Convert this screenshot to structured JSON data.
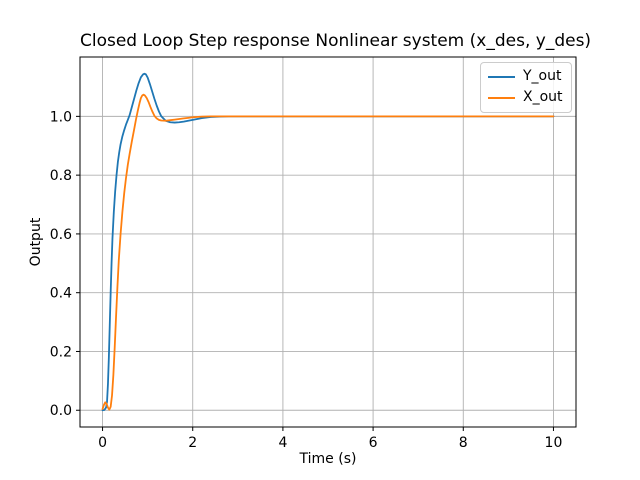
{
  "chart_data": {
    "type": "line",
    "title": "Closed Loop Step response Nonlinear system (x_des, y_des)",
    "xlabel": "Time (s)",
    "ylabel": "Output",
    "xlim": [
      -0.5,
      10.5
    ],
    "ylim": [
      -0.057,
      1.202
    ],
    "grid": true,
    "grid_color": "#b0b0b0",
    "axes_edge_color": "#000000",
    "background_color": "#ffffff",
    "legend": {
      "position": "upper right",
      "entries": [
        "Y_out",
        "X_out"
      ]
    },
    "xticks": {
      "values": [
        0,
        2,
        4,
        6,
        8,
        10
      ],
      "labels": [
        "0",
        "2",
        "4",
        "6",
        "8",
        "10"
      ]
    },
    "yticks": {
      "values": [
        0.0,
        0.2,
        0.4,
        0.6,
        0.8,
        1.0
      ],
      "labels": [
        "0.0",
        "0.2",
        "0.4",
        "0.6",
        "0.8",
        "1.0"
      ]
    },
    "series": [
      {
        "name": "Y_out",
        "color": "#1f77b4",
        "x": [
          0,
          0.04,
          0.08,
          0.1,
          0.12,
          0.14,
          0.16,
          0.18,
          0.2,
          0.22,
          0.25,
          0.28,
          0.31,
          0.34,
          0.37,
          0.4,
          0.44,
          0.48,
          0.52,
          0.56,
          0.6,
          0.65,
          0.7,
          0.75,
          0.8,
          0.85,
          0.9,
          0.93,
          0.96,
          1.0,
          1.05,
          1.1,
          1.15,
          1.2,
          1.25,
          1.3,
          1.4,
          1.5,
          1.6,
          1.7,
          1.8,
          1.9,
          2.0,
          2.1,
          2.2,
          2.4,
          2.6,
          2.8,
          3.0,
          3.5,
          4.0,
          4.5,
          5.0,
          5.5,
          6.0,
          6.5,
          7.0,
          7.5,
          8.0,
          8.5,
          9.0,
          9.5,
          10.0
        ],
        "y": [
          0,
          0.001,
          0.01,
          0.03,
          0.09,
          0.18,
          0.29,
          0.4,
          0.5,
          0.585,
          0.675,
          0.745,
          0.8,
          0.845,
          0.878,
          0.905,
          0.932,
          0.953,
          0.972,
          0.988,
          1.004,
          1.032,
          1.06,
          1.088,
          1.113,
          1.133,
          1.143,
          1.145,
          1.143,
          1.132,
          1.11,
          1.085,
          1.06,
          1.037,
          1.017,
          1.001,
          0.985,
          0.98,
          0.979,
          0.98,
          0.982,
          0.985,
          0.988,
          0.991,
          0.994,
          0.998,
          0.999,
          1.0,
          1.0,
          1.0,
          1.0,
          1.0,
          1.0,
          1.0,
          1.0,
          1.0,
          1.0,
          1.0,
          1.0,
          1.0,
          1.0,
          1.0,
          1.0
        ]
      },
      {
        "name": "X_out",
        "color": "#ff7f0e",
        "x": [
          0,
          0.03,
          0.06,
          0.09,
          0.12,
          0.15,
          0.18,
          0.21,
          0.24,
          0.27,
          0.3,
          0.33,
          0.36,
          0.4,
          0.44,
          0.48,
          0.52,
          0.56,
          0.6,
          0.65,
          0.7,
          0.74,
          0.78,
          0.82,
          0.85,
          0.88,
          0.91,
          0.94,
          0.98,
          1.02,
          1.06,
          1.1,
          1.15,
          1.2,
          1.25,
          1.3,
          1.4,
          1.5,
          1.6,
          1.7,
          1.8,
          1.9,
          2.0,
          2.2,
          2.4,
          2.6,
          2.8,
          3.0,
          3.5,
          4.0,
          4.5,
          5.0,
          5.5,
          6.0,
          6.5,
          7.0,
          7.5,
          8.0,
          8.5,
          9.0,
          9.5,
          10.0
        ],
        "y": [
          0.004,
          0.018,
          0.027,
          0.022,
          0.009,
          0.002,
          0.012,
          0.05,
          0.12,
          0.215,
          0.32,
          0.42,
          0.51,
          0.6,
          0.675,
          0.738,
          0.79,
          0.835,
          0.872,
          0.915,
          0.955,
          0.988,
          1.018,
          1.045,
          1.062,
          1.071,
          1.074,
          1.071,
          1.062,
          1.049,
          1.033,
          1.018,
          1.002,
          0.993,
          0.988,
          0.986,
          0.985,
          0.987,
          0.989,
          0.991,
          0.993,
          0.995,
          0.997,
          0.999,
          1.0,
          1.0,
          1.0,
          1.0,
          1.0,
          1.0,
          1.0,
          1.0,
          1.0,
          1.0,
          1.0,
          1.0,
          1.0,
          1.0,
          1.0,
          1.0,
          1.0,
          1.0
        ]
      }
    ]
  }
}
